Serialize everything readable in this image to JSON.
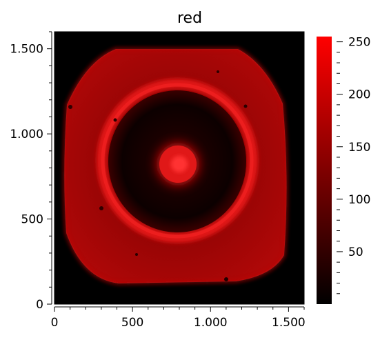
{
  "chart_data": {
    "type": "heatmap",
    "title": "red",
    "xlabel": "",
    "ylabel": "",
    "xlim": [
      0,
      1600
    ],
    "ylim": [
      0,
      1600
    ],
    "x_ticks": [
      {
        "value": 0,
        "label": "0"
      },
      {
        "value": 500,
        "label": "500"
      },
      {
        "value": 1000,
        "label": "1.000"
      },
      {
        "value": 1500,
        "label": "1.500"
      }
    ],
    "y_ticks": [
      {
        "value": 0,
        "label": "0"
      },
      {
        "value": 500,
        "label": "500"
      },
      {
        "value": 1000,
        "label": "1.000"
      },
      {
        "value": 1500,
        "label": "1.500"
      }
    ],
    "colorbar": {
      "range": [
        0,
        255
      ],
      "ticks": [
        {
          "value": 50,
          "label": "50"
        },
        {
          "value": 100,
          "label": "100"
        },
        {
          "value": 150,
          "label": "150"
        },
        {
          "value": 200,
          "label": "200"
        },
        {
          "value": 250,
          "label": "250"
        }
      ],
      "color_low": "#000000",
      "color_high": "#ff0000"
    },
    "colors": {
      "background": "#000000",
      "sample": "#a00000",
      "ring": "#e01010",
      "center": "#ff2020"
    }
  }
}
